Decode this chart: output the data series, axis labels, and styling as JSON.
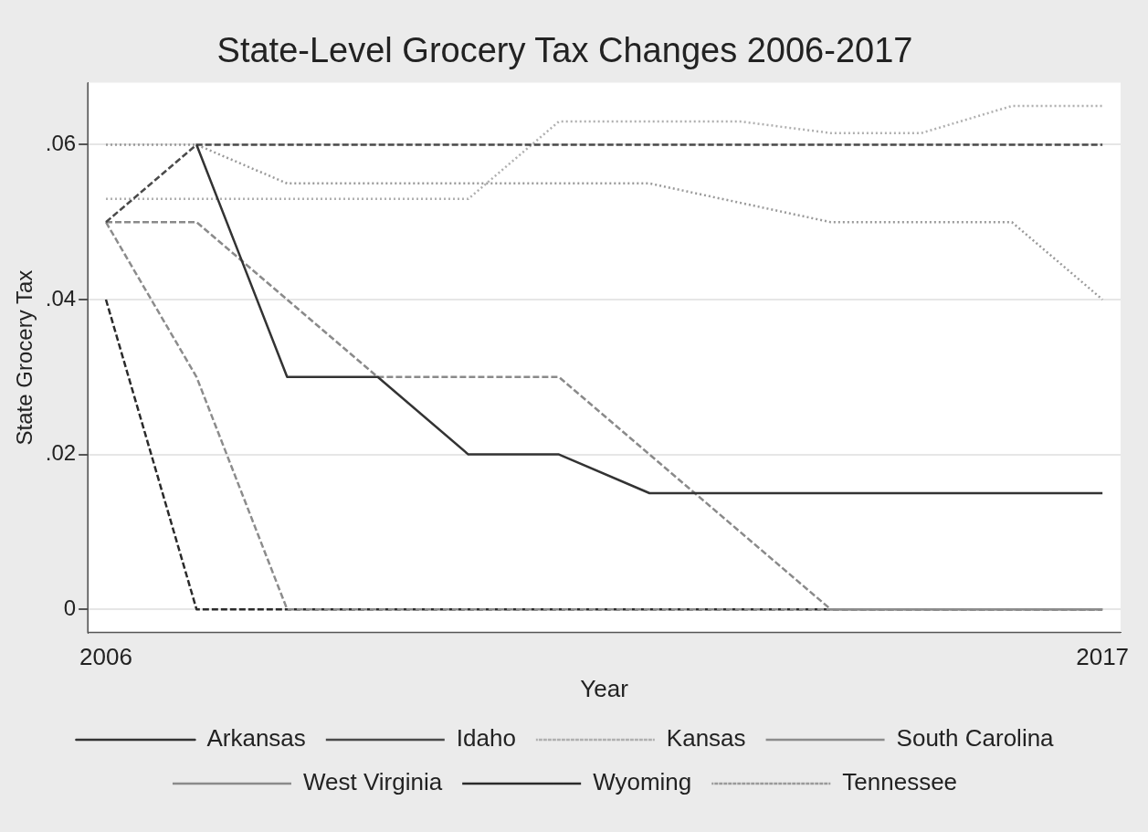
{
  "chart_data": {
    "type": "line",
    "title": "State-Level Grocery Tax Changes 2006-2017",
    "xlabel": "Year",
    "ylabel": "State Grocery Tax",
    "x": [
      2006,
      2007,
      2008,
      2009,
      2010,
      2011,
      2012,
      2013,
      2014,
      2015,
      2016,
      2017
    ],
    "xlim": [
      2005.8,
      2017.2
    ],
    "xticks": [
      2006,
      2017
    ],
    "ylim": [
      -0.003,
      0.068
    ],
    "yticks": [
      {
        "value": 0,
        "label": "0"
      },
      {
        "value": 0.02,
        "label": ".02"
      },
      {
        "value": 0.04,
        "label": ".04"
      },
      {
        "value": 0.06,
        "label": ".06"
      }
    ],
    "grid": "y",
    "legend": "bottom",
    "marker": "none",
    "series": [
      {
        "name": "Arkansas",
        "color": "#333333",
        "line_style": "solid",
        "values": [
          null,
          0.06,
          0.03,
          0.03,
          0.02,
          0.02,
          0.015,
          0.015,
          0.015,
          0.015,
          0.015,
          0.015
        ]
      },
      {
        "name": "Idaho",
        "color": "#4a4a4a",
        "line_style": "dashed",
        "values": [
          0.05,
          0.06,
          0.06,
          0.06,
          0.06,
          0.06,
          0.06,
          0.06,
          0.06,
          0.06,
          0.06,
          0.06
        ]
      },
      {
        "name": "Kansas",
        "color": "#b0b0b0",
        "line_style": "dotted",
        "values": [
          0.053,
          0.053,
          0.053,
          0.053,
          0.053,
          0.063,
          0.063,
          0.063,
          0.0615,
          0.0615,
          0.065,
          0.065
        ]
      },
      {
        "name": "South Carolina",
        "color": "#8c8c8c",
        "line_style": "dashed",
        "values": [
          0.05,
          0.03,
          0,
          0,
          0,
          0,
          0,
          0,
          0,
          0,
          0,
          0
        ]
      },
      {
        "name": "West Virginia",
        "color": "#8a8a8a",
        "line_style": "dashed",
        "values": [
          0.05,
          0.05,
          0.04,
          0.03,
          0.03,
          0.03,
          0.02,
          0.01,
          0,
          0,
          0,
          0
        ]
      },
      {
        "name": "Wyoming",
        "color": "#2a2a2a",
        "line_style": "dashed",
        "values": [
          0.04,
          0,
          0,
          0,
          0,
          0,
          0,
          0,
          0,
          0,
          0,
          0
        ]
      },
      {
        "name": "Tennessee",
        "color": "#9a9a9a",
        "line_style": "dotted",
        "values": [
          0.06,
          0.06,
          0.055,
          0.055,
          0.055,
          0.055,
          0.055,
          0.0525,
          0.05,
          0.05,
          0.05,
          0.04
        ]
      }
    ]
  }
}
